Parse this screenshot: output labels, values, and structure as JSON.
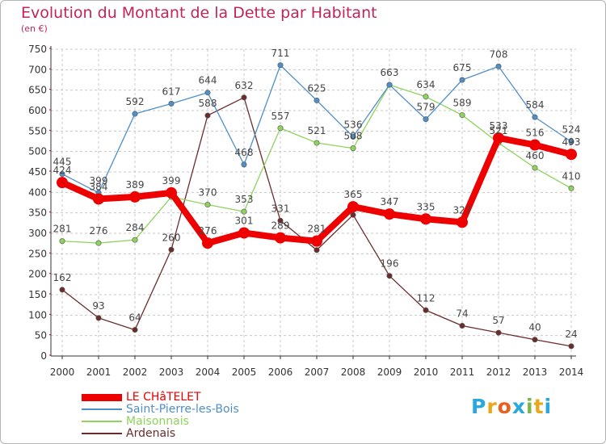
{
  "title": "Evolution du Montant de la Dette par Habitant",
  "subtitle": "(en €)",
  "logo": {
    "letters": [
      "P",
      "r",
      "o",
      "x",
      "i",
      "t",
      "i"
    ],
    "colors": [
      "#2aa7df",
      "#e8a81c",
      "#e8601c",
      "#2aa7df",
      "#7ab648",
      "#e8a81c",
      "#2aa7df"
    ]
  },
  "colors": {
    "title": "#c0245b",
    "axis": "#333333",
    "grid": "#c8c8c8",
    "tickmark": "#cc0000"
  },
  "chart_data": {
    "type": "line",
    "title": "Evolution du Montant de la Dette par Habitant",
    "subtitle": "(en €)",
    "xlabel": "",
    "ylabel": "",
    "ylim": [
      0,
      750
    ],
    "yticks": [
      0,
      50,
      100,
      150,
      200,
      250,
      300,
      350,
      400,
      450,
      500,
      550,
      600,
      650,
      700,
      750
    ],
    "x": [
      "2000",
      "2001",
      "2002",
      "2003",
      "2004",
      "2005",
      "2006",
      "2007",
      "2008",
      "2009",
      "2010",
      "2011",
      "2012",
      "2013",
      "2014"
    ],
    "grid": true,
    "legend_position": "bottom-left",
    "series": [
      {
        "name": "Ardenais",
        "color": "#6b2c2c",
        "values": [
          162,
          93,
          64,
          260,
          588,
          632,
          331,
          259,
          345,
          196,
          112,
          74,
          57,
          40,
          24
        ],
        "labels": [
          "162",
          "93",
          "64",
          "260",
          "588",
          "632",
          "331",
          "",
          "",
          "196",
          "112",
          "74",
          "57",
          "40",
          "24"
        ]
      },
      {
        "name": "Maisonnais",
        "color": "#8ed35c",
        "values": [
          281,
          276,
          284,
          389,
          370,
          353,
          557,
          521,
          508,
          663,
          634,
          589,
          521,
          460,
          410
        ],
        "labels": [
          "281",
          "276",
          "284",
          "",
          "370",
          "353",
          "557",
          "521",
          "508",
          "",
          "634",
          "589",
          "521",
          "460",
          "410"
        ]
      },
      {
        "name": "Saint-Pierre-les-Bois",
        "color": "#4f8fc9",
        "values": [
          445,
          399,
          592,
          617,
          644,
          468,
          711,
          625,
          536,
          663,
          579,
          675,
          708,
          584,
          524
        ],
        "labels": [
          "445",
          "399",
          "592",
          "617",
          "644",
          "468",
          "711",
          "625",
          "536",
          "663",
          "579",
          "675",
          "708",
          "584",
          "524"
        ]
      },
      {
        "name": "LE CHâTELET",
        "color": "#ee0000",
        "values": [
          424,
          384,
          389,
          399,
          276,
          301,
          289,
          281,
          365,
          347,
          335,
          327,
          533,
          516,
          493
        ],
        "labels": [
          "424",
          "384",
          "389",
          "399",
          "276",
          "301",
          "289",
          "281",
          "365",
          "347",
          "335",
          "327",
          "533",
          "516",
          "493"
        ]
      }
    ]
  },
  "legend": [
    {
      "label": "LE CHâTELET",
      "color": "#ee0000",
      "thickness": 9
    },
    {
      "label": "Saint-Pierre-les-Bois",
      "color": "#4f8fc9",
      "thickness": 2
    },
    {
      "label": "Maisonnais",
      "color": "#8ed35c",
      "thickness": 2
    },
    {
      "label": "Ardenais",
      "color": "#6b2c2c",
      "thickness": 2
    }
  ]
}
